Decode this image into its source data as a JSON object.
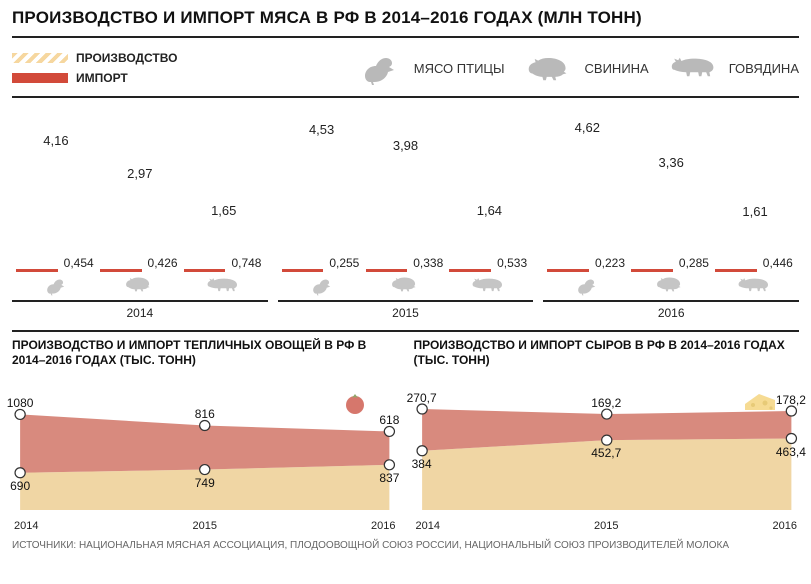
{
  "colors": {
    "production_fill": "#f6d79f",
    "production_stripe_bg": "#ffffff",
    "accent_red": "#d24a3a",
    "icon_gray": "#b9b9b9",
    "divider": "#222222",
    "area_red": "#d88a7e",
    "area_tan": "#f0d6a4",
    "text": "#111111",
    "bg": "#ffffff"
  },
  "title": "ПРОИЗВОДСТВО И ИМПОРТ МЯСА В РФ В 2014–2016 ГОДАХ (МЛН ТОНН)",
  "legend": {
    "production": "ПРОИЗВОДСТВО",
    "import": "ИМПОРТ"
  },
  "meat_categories": [
    {
      "id": "poultry",
      "label": "МЯСО ПТИЦЫ"
    },
    {
      "id": "pork",
      "label": "СВИНИНА"
    },
    {
      "id": "beef",
      "label": "ГОВЯДИНА"
    }
  ],
  "meat_chart": {
    "type": "bar",
    "ylim": [
      0,
      5
    ],
    "bar_width_ratio": 1.15,
    "title_fontsize": 17,
    "value_fontsize": 13,
    "year_fontsize": 12,
    "years": [
      {
        "year": "2014",
        "groups": [
          {
            "cat": "poultry",
            "production": 4.16,
            "import": 0.454
          },
          {
            "cat": "pork",
            "production": 2.97,
            "import": 0.426
          },
          {
            "cat": "beef",
            "production": 1.65,
            "import": 0.748
          }
        ]
      },
      {
        "year": "2015",
        "groups": [
          {
            "cat": "poultry",
            "production": 4.53,
            "import": 0.255
          },
          {
            "cat": "pork",
            "production": 3.98,
            "import": 0.338
          },
          {
            "cat": "beef",
            "production": 1.64,
            "import": 0.533
          }
        ]
      },
      {
        "year": "2016",
        "groups": [
          {
            "cat": "poultry",
            "production": 4.62,
            "import": 0.223
          },
          {
            "cat": "pork",
            "production": 3.36,
            "import": 0.285
          },
          {
            "cat": "beef",
            "production": 1.61,
            "import": 0.446
          }
        ]
      }
    ]
  },
  "veg_chart": {
    "type": "area",
    "title": "ПРОИЗВОДСТВО И ИМПОРТ ТЕПЛИЧНЫХ ОВОЩЕЙ В РФ В 2014–2016 ГОДАХ (ТЫС. ТОНН)",
    "years": [
      "2014",
      "2015",
      "2016"
    ],
    "import": [
      1080,
      816,
      618
    ],
    "production": [
      690,
      749,
      837
    ],
    "ylim": [
      0,
      2000
    ],
    "marker": "circle",
    "marker_size": 5,
    "colors": {
      "top": "#d88a7e",
      "bottom": "#f0d6a4",
      "marker_fill": "#ffffff",
      "marker_stroke": "#333333"
    }
  },
  "cheese_chart": {
    "type": "area",
    "title": "ПРОИЗВОДСТВО И ИМПОРТ СЫРОВ В РФ В 2014–2016 ГОДАХ (ТЫС. ТОНН)",
    "years": [
      "2014",
      "2015",
      "2016"
    ],
    "import": [
      270.7,
      169.2,
      178.2
    ],
    "production": [
      384,
      452.7,
      463.4
    ],
    "ylim": [
      0,
      700
    ],
    "marker": "circle",
    "marker_size": 5,
    "colors": {
      "top": "#d88a7e",
      "bottom": "#f0d6a4",
      "marker_fill": "#ffffff",
      "marker_stroke": "#333333"
    }
  },
  "source": "ИСТОЧНИКИ: НАЦИОНАЛЬНАЯ МЯСНАЯ АССОЦИАЦИЯ, ПЛОДООВОЩНОЙ СОЮЗ РОССИИ, НАЦИОНАЛЬНЫЙ СОЮЗ ПРОИЗВОДИТЕЛЕЙ МОЛОКА"
}
